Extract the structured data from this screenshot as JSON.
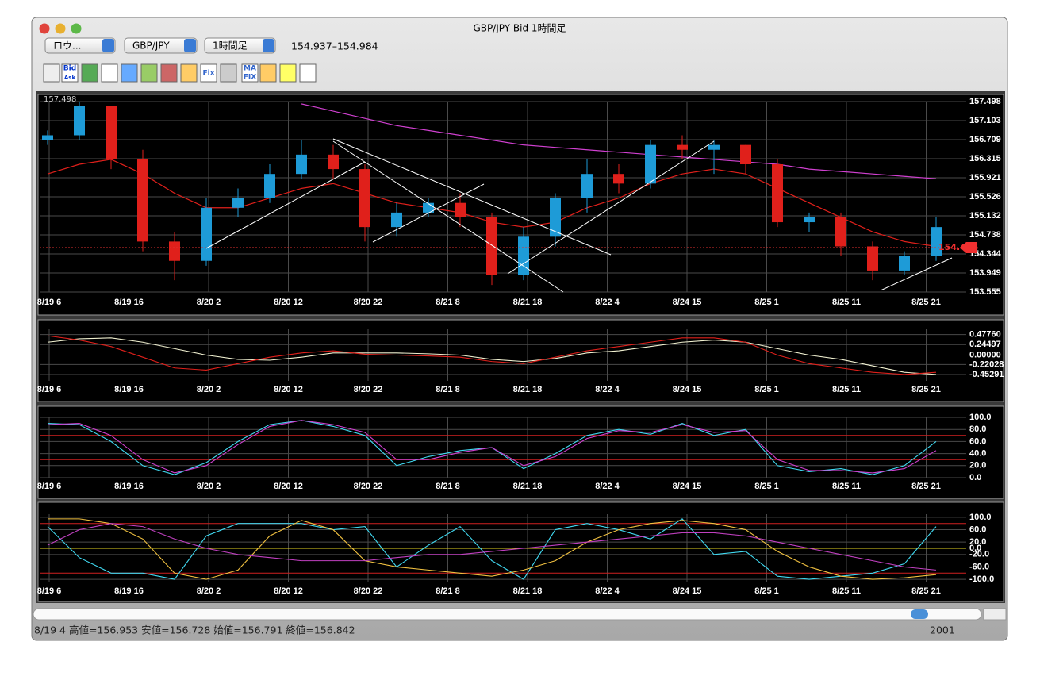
{
  "window": {
    "title": "GBP/JPY Bid 1時間足"
  },
  "toolbar": {
    "selects": [
      "ロウ...",
      "GBP/JPY",
      "1時間足"
    ],
    "range": "154.937–154.984",
    "icon_labels": [
      "Bid",
      "Ask",
      "Fix",
      "MA",
      "FIX"
    ]
  },
  "chart": {
    "x_labels": [
      "8/19 6",
      "8/19 16",
      "8/20 2",
      "8/20 12",
      "8/20 22",
      "8/21 8",
      "8/21 18",
      "8/22 4",
      "8/24 15",
      "8/25 1",
      "8/25 11",
      "8/25 21"
    ],
    "top_label": "157.498",
    "price_panel": {
      "type": "candlestick",
      "ylim": [
        153.555,
        157.498
      ],
      "yticks": [
        157.498,
        157.103,
        156.709,
        156.315,
        155.921,
        155.526,
        155.132,
        154.738,
        154.344,
        153.949,
        153.555
      ],
      "up_color": "#1e9bd7",
      "down_color": "#e0201b",
      "open": [
        156.7,
        156.8,
        157.4,
        156.3,
        154.6,
        154.2,
        155.3,
        155.5,
        156.0,
        156.4,
        156.1,
        154.9,
        155.2,
        155.4,
        155.1,
        153.9,
        154.7,
        155.5,
        156.0,
        155.8,
        156.6,
        156.5,
        156.6,
        156.2,
        155.0,
        155.1,
        154.5,
        154.0,
        154.3
      ],
      "high": [
        156.9,
        157.5,
        157.4,
        156.5,
        154.8,
        155.5,
        155.7,
        156.2,
        156.7,
        156.6,
        156.2,
        155.4,
        155.5,
        155.6,
        155.2,
        154.9,
        155.6,
        156.3,
        156.2,
        156.7,
        156.8,
        156.7,
        156.6,
        156.3,
        155.2,
        155.2,
        154.6,
        154.4,
        155.1
      ],
      "low": [
        156.6,
        156.7,
        156.1,
        154.4,
        153.8,
        154.1,
        155.1,
        155.4,
        155.9,
        155.9,
        154.6,
        154.7,
        155.1,
        154.9,
        153.7,
        153.8,
        154.5,
        155.2,
        155.6,
        155.7,
        156.3,
        156.0,
        156.0,
        154.9,
        154.8,
        154.3,
        153.8,
        153.9,
        154.2
      ],
      "close": [
        156.8,
        157.4,
        156.3,
        154.6,
        154.2,
        155.3,
        155.5,
        156.0,
        156.4,
        156.1,
        154.9,
        155.2,
        155.4,
        155.1,
        153.9,
        154.7,
        155.5,
        156.0,
        155.8,
        156.6,
        156.5,
        156.6,
        156.2,
        155.0,
        155.1,
        154.5,
        154.0,
        154.3,
        154.9
      ],
      "lines": [
        {
          "color": "#e0201b",
          "values": [
            156.0,
            156.2,
            156.3,
            156.0,
            155.6,
            155.3,
            155.3,
            155.5,
            155.7,
            155.8,
            155.6,
            155.4,
            155.3,
            155.2,
            155.0,
            154.9,
            155.0,
            155.3,
            155.5,
            155.8,
            156.0,
            156.1,
            156.0,
            155.7,
            155.4,
            155.1,
            154.8,
            154.6,
            154.5
          ]
        },
        {
          "color": "#d040d0",
          "values": [
            null,
            null,
            null,
            null,
            null,
            null,
            null,
            null,
            157.45,
            157.3,
            157.15,
            157.0,
            156.9,
            156.8,
            156.7,
            156.6,
            156.55,
            156.5,
            156.45,
            156.4,
            156.35,
            156.3,
            156.25,
            156.2,
            156.1,
            156.05,
            156.0,
            155.95,
            155.9
          ]
        }
      ],
      "last_price": 154.476
    },
    "panels": [
      {
        "type": "line",
        "ylim": [
          -0.6,
          0.6
        ],
        "yticks": [
          {
            "value": 0.4776,
            "label": "0.47760"
          },
          {
            "value": 0.24497,
            "label": "0.24497"
          },
          {
            "value": 0,
            "label": "0.00000"
          },
          {
            "value": -0.22028,
            "label": "-0.22028"
          },
          {
            "value": -0.45291,
            "label": "-0.45291"
          }
        ],
        "levels": [],
        "series": [
          {
            "color": "#f0f0d0",
            "values": [
              0.3,
              0.38,
              0.4,
              0.3,
              0.15,
              0.0,
              -0.1,
              -0.12,
              -0.05,
              0.05,
              0.05,
              0.05,
              0.03,
              0.0,
              -0.1,
              -0.15,
              -0.08,
              0.05,
              0.1,
              0.2,
              0.3,
              0.35,
              0.3,
              0.15,
              0.0,
              -0.1,
              -0.25,
              -0.4,
              -0.45
            ]
          },
          {
            "color": "#e0201b",
            "values": [
              0.45,
              0.35,
              0.2,
              -0.05,
              -0.3,
              -0.35,
              -0.2,
              -0.05,
              0.05,
              0.1,
              0.02,
              0.0,
              -0.02,
              -0.05,
              -0.15,
              -0.2,
              -0.05,
              0.1,
              0.2,
              0.3,
              0.4,
              0.4,
              0.3,
              0.0,
              -0.2,
              -0.3,
              -0.4,
              -0.45,
              -0.4
            ]
          }
        ]
      },
      {
        "type": "line",
        "ylim": [
          0,
          100
        ],
        "yticks": [
          {
            "value": 100,
            "label": "100.0"
          },
          {
            "value": 80,
            "label": "80.0"
          },
          {
            "value": 60,
            "label": "60.0"
          },
          {
            "value": 40,
            "label": "40.0"
          },
          {
            "value": 20,
            "label": "20.0"
          },
          {
            "value": 0,
            "label": "0.0"
          }
        ],
        "levels": [
          {
            "value": 70,
            "color": "#d02020"
          },
          {
            "value": 30,
            "color": "#d02020"
          }
        ],
        "series": [
          {
            "color": "#40d8f0",
            "values": [
              90,
              88,
              60,
              20,
              5,
              25,
              60,
              88,
              95,
              85,
              70,
              20,
              35,
              45,
              50,
              15,
              40,
              70,
              80,
              72,
              90,
              70,
              80,
              20,
              10,
              15,
              5,
              20,
              60
            ]
          },
          {
            "color": "#d040d0",
            "values": [
              88,
              90,
              70,
              30,
              8,
              20,
              55,
              85,
              95,
              88,
              75,
              30,
              30,
              42,
              50,
              20,
              35,
              65,
              78,
              75,
              88,
              75,
              78,
              30,
              12,
              12,
              8,
              15,
              45
            ]
          }
        ]
      },
      {
        "type": "line",
        "ylim": [
          -110,
          110
        ],
        "yticks": [
          {
            "value": 100,
            "label": "100.0"
          },
          {
            "value": 60,
            "label": "60.0"
          },
          {
            "value": 20,
            "label": "20.0"
          },
          {
            "value": 0,
            "label": "0.0"
          },
          {
            "value": -20,
            "label": "-20.0"
          },
          {
            "value": -60,
            "label": "-60.0"
          },
          {
            "value": -100,
            "label": "-100.0"
          }
        ],
        "levels": [
          {
            "value": 80,
            "color": "#d02020"
          },
          {
            "value": 0,
            "color": "#e0d020"
          },
          {
            "value": -80,
            "color": "#d02020"
          }
        ],
        "series": [
          {
            "color": "#40d8f0",
            "values": [
              70,
              -30,
              -80,
              -80,
              -100,
              40,
              80,
              80,
              80,
              60,
              70,
              -60,
              10,
              70,
              -40,
              -100,
              60,
              80,
              60,
              30,
              95,
              -20,
              -10,
              -90,
              -100,
              -90,
              -80,
              -50,
              70
            ]
          },
          {
            "color": "#f0c040",
            "values": [
              95,
              95,
              80,
              30,
              -80,
              -100,
              -70,
              40,
              90,
              60,
              -40,
              -60,
              -70,
              -80,
              -90,
              -70,
              -40,
              20,
              60,
              80,
              90,
              80,
              60,
              -10,
              -60,
              -90,
              -100,
              -95,
              -85
            ]
          },
          {
            "color": "#c040c0",
            "values": [
              10,
              60,
              80,
              70,
              30,
              0,
              -20,
              -30,
              -40,
              -40,
              -40,
              -30,
              -20,
              -20,
              -10,
              0,
              10,
              20,
              30,
              40,
              50,
              50,
              40,
              20,
              0,
              -20,
              -40,
              -60,
              -70
            ]
          }
        ]
      }
    ]
  },
  "status": {
    "left": "8/19 4  高値=156.953 安値=156.728 始値=156.791 終値=156.842",
    "right": "2001"
  }
}
